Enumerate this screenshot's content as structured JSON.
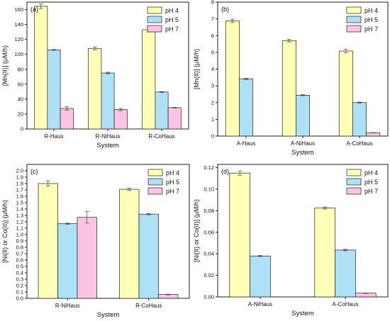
{
  "chart_data": [
    {
      "type": "bar",
      "panel_label": "(a)",
      "categories": [
        "R-Haus",
        "R-NiHaus",
        "R-CoHaus"
      ],
      "series": [
        {
          "name": "pH 4",
          "values": [
            164.5,
            108,
            133
          ],
          "errors": [
            3,
            2,
            3
          ]
        },
        {
          "name": "pH 5",
          "values": [
            106,
            75,
            49.5
          ],
          "errors": [
            0.5,
            1,
            0.5
          ]
        },
        {
          "name": "pH 7",
          "values": [
            27.5,
            26,
            28.5
          ],
          "errors": [
            2.5,
            1.5,
            0.5
          ]
        }
      ],
      "xlabel": "System",
      "ylabel": "[Mn(II)] (μM/h)",
      "ylim": [
        0,
        170
      ],
      "yticks": [
        "0",
        "20",
        "40",
        "60",
        "80",
        "100",
        "120",
        "140",
        "160"
      ],
      "legend": "top-right"
    },
    {
      "type": "bar",
      "panel_label": "(b)",
      "categories": [
        "A-Haus",
        "A-NiHaus",
        "A-CoHaus"
      ],
      "series": [
        {
          "name": "pH 4",
          "values": [
            6.88,
            5.7,
            5.08
          ],
          "errors": [
            0.1,
            0.08,
            0.1
          ]
        },
        {
          "name": "pH 5",
          "values": [
            3.42,
            2.44,
            2.0
          ],
          "errors": [
            0.04,
            0.03,
            0.03
          ]
        },
        {
          "name": "pH 7",
          "values": [
            0.0,
            0.0,
            0.2
          ],
          "errors": [
            0,
            0,
            0.01
          ]
        }
      ],
      "xlabel": "System",
      "ylabel": "[Mn(II)] (μM/h)",
      "ylim": [
        0,
        8
      ],
      "yticks": [
        "0",
        "1",
        "2",
        "3",
        "4",
        "5",
        "6",
        "7",
        "8"
      ],
      "legend": "top-right"
    },
    {
      "type": "bar",
      "panel_label": "(c)",
      "categories": [
        "R-NiHaus",
        "R-CoHaus"
      ],
      "series": [
        {
          "name": "pH 4",
          "values": [
            1.8,
            1.71
          ],
          "errors": [
            0.04,
            0.02
          ]
        },
        {
          "name": "pH 5",
          "values": [
            1.17,
            1.32
          ],
          "errors": [
            0.01,
            0.01
          ]
        },
        {
          "name": "pH 7",
          "values": [
            1.27,
            0.06
          ],
          "errors": [
            0.09,
            0.005
          ]
        }
      ],
      "xlabel": "System",
      "ylabel": "[Ni(II) or Co(II)] (μM/h)",
      "ylim": [
        0,
        2.1
      ],
      "yticks": [
        "0.0",
        "0.1",
        "0.2",
        "0.3",
        "0.4",
        "0.5",
        "0.6",
        "0.7",
        "0.8",
        "0.9",
        "1.0",
        "1.1",
        "1.2",
        "1.3",
        "1.4",
        "1.5",
        "1.6",
        "1.7",
        "1.8",
        "1.9",
        "2.0"
      ],
      "legend": "top-right"
    },
    {
      "type": "bar",
      "panel_label": "(d)",
      "categories": [
        "A-NiHaus",
        "A-CoHaus"
      ],
      "series": [
        {
          "name": "pH 4",
          "values": [
            0.115,
            0.0825
          ],
          "errors": [
            0.002,
            0.001
          ]
        },
        {
          "name": "pH 5",
          "values": [
            0.038,
            0.0435
          ],
          "errors": [
            0.0005,
            0.0007
          ]
        },
        {
          "name": "pH 7",
          "values": [
            0.0,
            0.0035
          ],
          "errors": [
            0,
            0.0002
          ]
        }
      ],
      "xlabel": "System",
      "ylabel": "[Ni(II) or Co(II)] (μM/h)",
      "ylim": [
        0,
        0.123
      ],
      "yticks": [
        "0.00",
        "0.02",
        "0.04",
        "0.06",
        "0.08",
        "0.10",
        "0.12"
      ],
      "legend": "top-right"
    }
  ],
  "colors": {
    "pH 4": "#ffffb8",
    "pH 5": "#aee0f6",
    "pH 7": "#fcc4e4",
    "axis": "#222222"
  }
}
